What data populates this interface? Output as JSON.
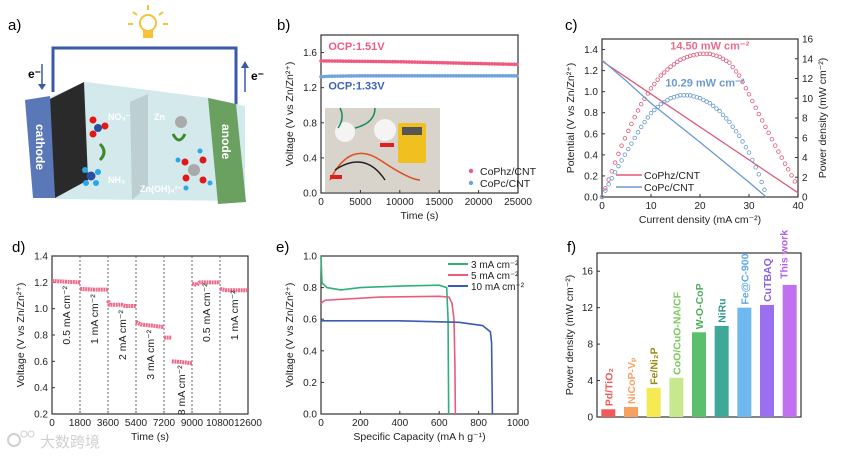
{
  "panel_labels": [
    "a)",
    "b)",
    "c)",
    "d)",
    "e)",
    "f)"
  ],
  "schematic": {
    "electron_left": "e⁻",
    "electron_right": "e⁻",
    "cathode": "cathode",
    "anode": "anode",
    "nitrate": "NO₃⁻",
    "ammonia": "NH₃",
    "zinc": "Zn",
    "zincate": "Zn(OH)₄²⁻",
    "colors": {
      "wire": "#3a5aa8",
      "cathode": "#5a78b8",
      "anode": "#6aa060",
      "electrolyte": "#cfe7ea",
      "bulb": "#f5c23a"
    }
  },
  "watermark": "大数跨境",
  "chart_data": [
    {
      "panel": "b",
      "type": "scatter",
      "xlabel": "Time (s)",
      "ylabel": "Voltage (V vs Zn/Zn²⁺)",
      "xlim": [
        0,
        25000
      ],
      "ylim": [
        0,
        1.8
      ],
      "xticks": [
        "0",
        "5000",
        "10000",
        "15000",
        "20000",
        "25000"
      ],
      "yticks": [
        "0.0",
        "0.4",
        "0.8",
        "1.2",
        "1.6"
      ],
      "series": [
        {
          "name": "CoPhz/CNT",
          "color": "#ee5a80",
          "points": [
            [
              0,
              1.505
            ],
            [
              5000,
              1.5
            ],
            [
              10000,
              1.495
            ],
            [
              15000,
              1.485
            ],
            [
              20000,
              1.475
            ],
            [
              25000,
              1.465
            ]
          ]
        },
        {
          "name": "CoPc/CNT",
          "color": "#6ea3dc",
          "points": [
            [
              0,
              1.325
            ],
            [
              1000,
              1.33
            ],
            [
              5000,
              1.335
            ],
            [
              15000,
              1.335
            ],
            [
              25000,
              1.335
            ]
          ]
        }
      ],
      "annotations": [
        {
          "text": "OCP:1.51V",
          "x": 4500,
          "y": 1.63,
          "color": "#ee5a80"
        },
        {
          "text": "OCP:1.33V",
          "x": 4500,
          "y": 1.18,
          "color": "#3a64b8"
        }
      ],
      "legend": "bottom-right"
    },
    {
      "panel": "c",
      "type": "line",
      "xlabel": "Current density (mA cm⁻²)",
      "ylabel": "Potential (V vs Zn/Zn²⁺)",
      "ylabel_right": "Power density (mW cm⁻²)",
      "xlim": [
        0,
        40
      ],
      "ylim": [
        0,
        1.5
      ],
      "ylim_right": [
        0,
        16
      ],
      "xticks": [
        "0",
        "10",
        "20",
        "30",
        "40"
      ],
      "yticks": [
        "0.0",
        "0.2",
        "0.4",
        "0.6",
        "0.8",
        "1.0",
        "1.2",
        "1.4"
      ],
      "yticks_right": [
        "0",
        "2",
        "4",
        "6",
        "8",
        "10",
        "12",
        "14",
        "16"
      ],
      "series": [
        {
          "name": "CoPhz/CNT",
          "color": "#e05a78",
          "potential": [
            [
              0,
              1.29
            ],
            [
              40,
              0.04
            ]
          ],
          "power": [
            [
              0,
              0
            ],
            [
              2,
              2.6
            ],
            [
              4,
              5.2
            ],
            [
              6,
              7.4
            ],
            [
              8,
              9.4
            ],
            [
              10,
              11.0
            ],
            [
              12,
              12.3
            ],
            [
              14,
              13.2
            ],
            [
              16,
              13.9
            ],
            [
              18,
              14.3
            ],
            [
              20,
              14.5
            ],
            [
              22,
              14.5
            ],
            [
              24,
              14.2
            ],
            [
              26,
              13.6
            ],
            [
              28,
              12.3
            ],
            [
              30,
              10.4
            ],
            [
              32,
              8.4
            ],
            [
              34,
              6.5
            ],
            [
              36,
              4.6
            ],
            [
              38,
              2.8
            ],
            [
              40,
              1.0
            ]
          ]
        },
        {
          "name": "CoPc/CNT",
          "color": "#6a9ad0",
          "potential": [
            [
              0,
              1.3
            ],
            [
              2,
              1.22
            ],
            [
              5,
              1.1
            ],
            [
              10,
              0.89
            ],
            [
              20,
              0.52
            ],
            [
              30,
              0.14
            ],
            [
              33.5,
              0
            ]
          ],
          "power": [
            [
              0,
              0
            ],
            [
              2,
              1.9
            ],
            [
              4,
              3.7
            ],
            [
              6,
              5.4
            ],
            [
              8,
              7.1
            ],
            [
              10,
              8.5
            ],
            [
              12,
              9.4
            ],
            [
              14,
              10.0
            ],
            [
              16,
              10.3
            ],
            [
              18,
              10.29
            ],
            [
              20,
              10.0
            ],
            [
              22,
              9.5
            ],
            [
              24,
              8.7
            ],
            [
              26,
              7.6
            ],
            [
              28,
              6.2
            ],
            [
              30,
              4.5
            ],
            [
              32,
              2.3
            ],
            [
              33.7,
              0
            ]
          ]
        }
      ],
      "annotations": [
        {
          "text": "14.50 mW cm⁻²",
          "x": 22,
          "y": 1.4,
          "color": "#ee6a8a"
        },
        {
          "text": "10.29 mW cm⁻²",
          "x": 21,
          "y": 1.05,
          "color": "#6a9ad0"
        }
      ],
      "legend": "bottom-left"
    },
    {
      "panel": "d",
      "type": "scatter",
      "xlabel": "Time (s)",
      "ylabel": "Voltage (V vs Zn/Zn²⁺)",
      "xlim": [
        0,
        12600
      ],
      "ylim": [
        0.2,
        1.4
      ],
      "xticks": [
        "0",
        "1800",
        "3600",
        "5400",
        "7200",
        "9000",
        "10800",
        "12600"
      ],
      "yticks": [
        "0.2",
        "0.4",
        "0.6",
        "0.8",
        "1.0",
        "1.2",
        "1.4"
      ],
      "vlines": [
        1800,
        3600,
        5400,
        7200,
        9000,
        10800
      ],
      "color": "#ee6a8a",
      "segments": [
        [
          [
            0,
            1.21
          ],
          [
            900,
            1.205
          ],
          [
            1800,
            1.2
          ]
        ],
        [
          [
            1800,
            1.15
          ],
          [
            2700,
            1.145
          ],
          [
            3600,
            1.145
          ]
        ],
        [
          [
            3600,
            1.06
          ],
          [
            3700,
            1.03
          ],
          [
            4500,
            1.03
          ],
          [
            4700,
            1.02
          ],
          [
            5400,
            1.02
          ]
        ],
        [
          [
            5400,
            0.9
          ],
          [
            5700,
            0.88
          ],
          [
            6500,
            0.87
          ],
          [
            7200,
            0.86
          ]
        ],
        [
          [
            7200,
            0.78
          ],
          [
            7700,
            0.78
          ]
        ],
        [
          [
            7700,
            0.6
          ],
          [
            8300,
            0.595
          ],
          [
            9000,
            0.585
          ]
        ],
        [
          [
            9000,
            1.19
          ],
          [
            9300,
            1.18
          ],
          [
            9500,
            1.2
          ],
          [
            10800,
            1.2
          ]
        ],
        [
          [
            10800,
            1.15
          ],
          [
            11200,
            1.14
          ],
          [
            12600,
            1.14
          ]
        ]
      ],
      "annotations": [
        {
          "text": "0.5 mA cm⁻²",
          "x": 900,
          "y": 0.95
        },
        {
          "text": "1 mA cm⁻²",
          "x": 2700,
          "y": 0.92
        },
        {
          "text": "2 mA cm⁻²",
          "x": 4500,
          "y": 0.8
        },
        {
          "text": "3 mA cm⁻²",
          "x": 6300,
          "y": 0.65
        },
        {
          "text": "8 mA cm⁻²",
          "x": 8300,
          "y": 0.38
        },
        {
          "text": "0.5 mA cm⁻²",
          "x": 9900,
          "y": 0.97
        },
        {
          "text": "1 mA cm⁻²",
          "x": 11700,
          "y": 0.95
        }
      ]
    },
    {
      "panel": "e",
      "type": "line",
      "xlabel": "Specific Capacity (mA h g⁻¹)",
      "ylabel": "Voltage (V vs Zn/Zn²⁺)",
      "xlim": [
        0,
        1000
      ],
      "ylim": [
        0,
        1.0
      ],
      "xticks": [
        "0",
        "200",
        "400",
        "600",
        "800",
        "1000"
      ],
      "yticks": [
        "0.0",
        "0.2",
        "0.4",
        "0.6",
        "0.8",
        "1.0"
      ],
      "series": [
        {
          "name": "3 mA cm⁻²",
          "color": "#2fb07a",
          "points": [
            [
              0,
              1.0
            ],
            [
              5,
              0.83
            ],
            [
              30,
              0.8
            ],
            [
              100,
              0.785
            ],
            [
              200,
              0.8
            ],
            [
              400,
              0.81
            ],
            [
              600,
              0.815
            ],
            [
              638,
              0.8
            ],
            [
              645,
              0.6
            ],
            [
              648,
              0
            ]
          ]
        },
        {
          "name": "5 mA cm⁻²",
          "color": "#ec5a7c",
          "points": [
            [
              0,
              0.7
            ],
            [
              20,
              0.72
            ],
            [
              300,
              0.74
            ],
            [
              600,
              0.745
            ],
            [
              650,
              0.74
            ],
            [
              665,
              0.7
            ],
            [
              675,
              0.6
            ],
            [
              680,
              0.3
            ],
            [
              682,
              0
            ]
          ]
        },
        {
          "name": "10 mA cm⁻²",
          "color": "#3a5cae",
          "points": [
            [
              0,
              0.59
            ],
            [
              400,
              0.59
            ],
            [
              700,
              0.58
            ],
            [
              820,
              0.56
            ],
            [
              860,
              0.52
            ],
            [
              866,
              0.45
            ],
            [
              870,
              0
            ]
          ]
        }
      ],
      "legend": "top-right"
    },
    {
      "panel": "f",
      "type": "bar",
      "ylabel": "Power density (mW cm⁻²)",
      "ylim": [
        0,
        18
      ],
      "yticks": [
        "0",
        "4",
        "8",
        "12",
        "16"
      ],
      "categories": [
        "Pd/TiO₂",
        "NiCoP-Vₚ",
        "Fe/Ni₂P",
        "CoO/CuO-NA/CF",
        "W-O-CoP",
        "NiRu",
        "Fe@C-900",
        "CuTBAQ",
        "This work"
      ],
      "values": [
        0.85,
        1.1,
        3.2,
        4.3,
        9.3,
        10.0,
        12.0,
        12.3,
        14.5
      ],
      "colors": [
        "#f05a5a",
        "#f8a060",
        "#f6ea52",
        "#c8e890",
        "#5cbf6c",
        "#40a898",
        "#70b8f0",
        "#9a70f0",
        "#c070f0"
      ],
      "label_colors": [
        "#f05a5a",
        "#f8a060",
        "#9a8a10",
        "#7cc860",
        "#4caf5c",
        "#2f9a88",
        "#60a8e8",
        "#8a60e8",
        "#b060e8"
      ]
    }
  ]
}
